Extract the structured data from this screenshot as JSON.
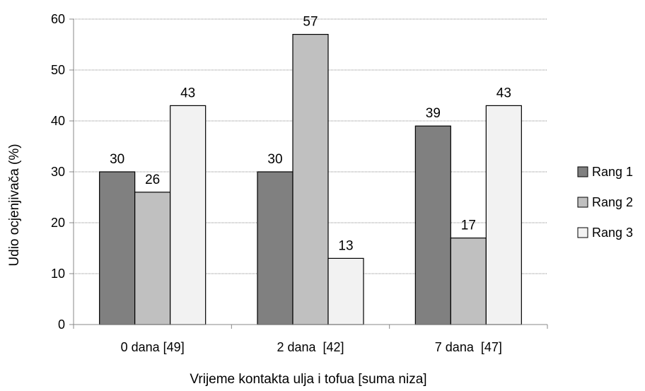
{
  "chart_data": {
    "type": "bar",
    "xlabel": "Vrijeme kontakta ulja i tofua [suma niza]",
    "ylabel": "Udio ocjenjivača (%)",
    "categories": [
      "0 dana [49]",
      "2 dana  [42]",
      "7 dana  [47]"
    ],
    "ylim": [
      0,
      60
    ],
    "yticks": [
      0,
      10,
      20,
      30,
      40,
      50,
      60
    ],
    "grid": true,
    "legend_position": "right",
    "series": [
      {
        "name": "Rang 1",
        "values": [
          30,
          30,
          39
        ],
        "color": "#808080"
      },
      {
        "name": "Rang 2",
        "values": [
          26,
          57,
          17
        ],
        "color": "#c0c0c0"
      },
      {
        "name": "Rang 3",
        "values": [
          43,
          13,
          43
        ],
        "color": "#f2f2f2"
      }
    ]
  }
}
